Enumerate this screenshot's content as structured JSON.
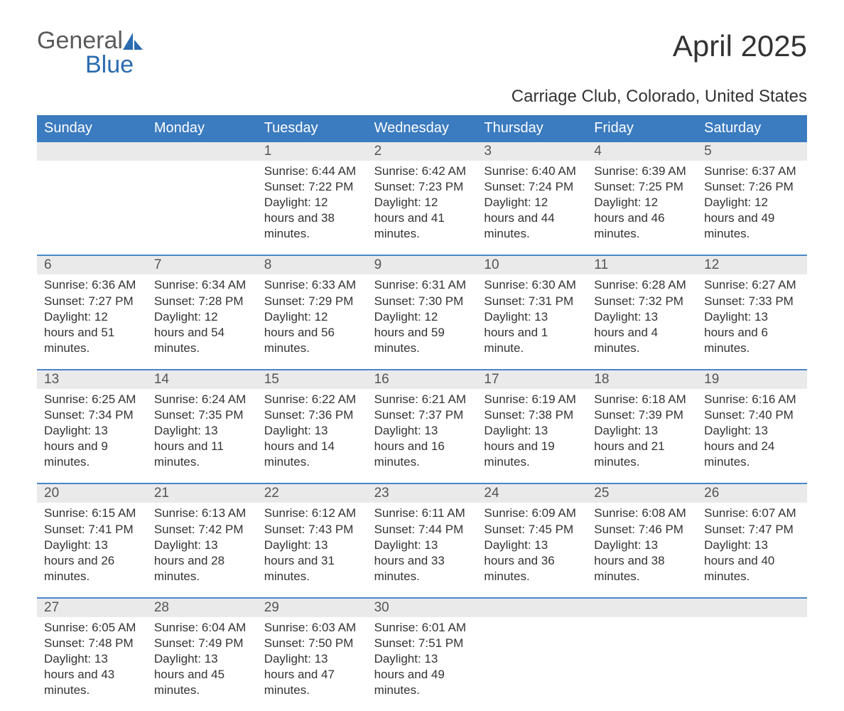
{
  "logo": {
    "part1": "General",
    "part2": "Blue"
  },
  "title": "April 2025",
  "subtitle": "Carriage Club, Colorado, United States",
  "day_headers": [
    "Sunday",
    "Monday",
    "Tuesday",
    "Wednesday",
    "Thursday",
    "Friday",
    "Saturday"
  ],
  "colors": {
    "header_blue": "#3b7bbf",
    "border_blue": "#4a87c7",
    "daynum_bg": "#eaeaea",
    "logo_blue": "#2a6bb0",
    "logo_gray": "#5a5a5a",
    "text": "#333333",
    "background": "#ffffff"
  },
  "typography": {
    "title_fontsize": 42,
    "subtitle_fontsize": 24,
    "header_fontsize": 20,
    "daynum_fontsize": 19,
    "cell_fontsize": 17,
    "font_family": "Segoe UI"
  },
  "labels": {
    "sunrise": "Sunrise:",
    "sunset": "Sunset:",
    "daylight": "Daylight:"
  },
  "weeks": [
    [
      null,
      null,
      {
        "n": "1",
        "sunrise": "6:44 AM",
        "sunset": "7:22 PM",
        "daylight": "12 hours and 38 minutes."
      },
      {
        "n": "2",
        "sunrise": "6:42 AM",
        "sunset": "7:23 PM",
        "daylight": "12 hours and 41 minutes."
      },
      {
        "n": "3",
        "sunrise": "6:40 AM",
        "sunset": "7:24 PM",
        "daylight": "12 hours and 44 minutes."
      },
      {
        "n": "4",
        "sunrise": "6:39 AM",
        "sunset": "7:25 PM",
        "daylight": "12 hours and 46 minutes."
      },
      {
        "n": "5",
        "sunrise": "6:37 AM",
        "sunset": "7:26 PM",
        "daylight": "12 hours and 49 minutes."
      }
    ],
    [
      {
        "n": "6",
        "sunrise": "6:36 AM",
        "sunset": "7:27 PM",
        "daylight": "12 hours and 51 minutes."
      },
      {
        "n": "7",
        "sunrise": "6:34 AM",
        "sunset": "7:28 PM",
        "daylight": "12 hours and 54 minutes."
      },
      {
        "n": "8",
        "sunrise": "6:33 AM",
        "sunset": "7:29 PM",
        "daylight": "12 hours and 56 minutes."
      },
      {
        "n": "9",
        "sunrise": "6:31 AM",
        "sunset": "7:30 PM",
        "daylight": "12 hours and 59 minutes."
      },
      {
        "n": "10",
        "sunrise": "6:30 AM",
        "sunset": "7:31 PM",
        "daylight": "13 hours and 1 minute."
      },
      {
        "n": "11",
        "sunrise": "6:28 AM",
        "sunset": "7:32 PM",
        "daylight": "13 hours and 4 minutes."
      },
      {
        "n": "12",
        "sunrise": "6:27 AM",
        "sunset": "7:33 PM",
        "daylight": "13 hours and 6 minutes."
      }
    ],
    [
      {
        "n": "13",
        "sunrise": "6:25 AM",
        "sunset": "7:34 PM",
        "daylight": "13 hours and 9 minutes."
      },
      {
        "n": "14",
        "sunrise": "6:24 AM",
        "sunset": "7:35 PM",
        "daylight": "13 hours and 11 minutes."
      },
      {
        "n": "15",
        "sunrise": "6:22 AM",
        "sunset": "7:36 PM",
        "daylight": "13 hours and 14 minutes."
      },
      {
        "n": "16",
        "sunrise": "6:21 AM",
        "sunset": "7:37 PM",
        "daylight": "13 hours and 16 minutes."
      },
      {
        "n": "17",
        "sunrise": "6:19 AM",
        "sunset": "7:38 PM",
        "daylight": "13 hours and 19 minutes."
      },
      {
        "n": "18",
        "sunrise": "6:18 AM",
        "sunset": "7:39 PM",
        "daylight": "13 hours and 21 minutes."
      },
      {
        "n": "19",
        "sunrise": "6:16 AM",
        "sunset": "7:40 PM",
        "daylight": "13 hours and 24 minutes."
      }
    ],
    [
      {
        "n": "20",
        "sunrise": "6:15 AM",
        "sunset": "7:41 PM",
        "daylight": "13 hours and 26 minutes."
      },
      {
        "n": "21",
        "sunrise": "6:13 AM",
        "sunset": "7:42 PM",
        "daylight": "13 hours and 28 minutes."
      },
      {
        "n": "22",
        "sunrise": "6:12 AM",
        "sunset": "7:43 PM",
        "daylight": "13 hours and 31 minutes."
      },
      {
        "n": "23",
        "sunrise": "6:11 AM",
        "sunset": "7:44 PM",
        "daylight": "13 hours and 33 minutes."
      },
      {
        "n": "24",
        "sunrise": "6:09 AM",
        "sunset": "7:45 PM",
        "daylight": "13 hours and 36 minutes."
      },
      {
        "n": "25",
        "sunrise": "6:08 AM",
        "sunset": "7:46 PM",
        "daylight": "13 hours and 38 minutes."
      },
      {
        "n": "26",
        "sunrise": "6:07 AM",
        "sunset": "7:47 PM",
        "daylight": "13 hours and 40 minutes."
      }
    ],
    [
      {
        "n": "27",
        "sunrise": "6:05 AM",
        "sunset": "7:48 PM",
        "daylight": "13 hours and 43 minutes."
      },
      {
        "n": "28",
        "sunrise": "6:04 AM",
        "sunset": "7:49 PM",
        "daylight": "13 hours and 45 minutes."
      },
      {
        "n": "29",
        "sunrise": "6:03 AM",
        "sunset": "7:50 PM",
        "daylight": "13 hours and 47 minutes."
      },
      {
        "n": "30",
        "sunrise": "6:01 AM",
        "sunset": "7:51 PM",
        "daylight": "13 hours and 49 minutes."
      },
      null,
      null,
      null
    ]
  ]
}
